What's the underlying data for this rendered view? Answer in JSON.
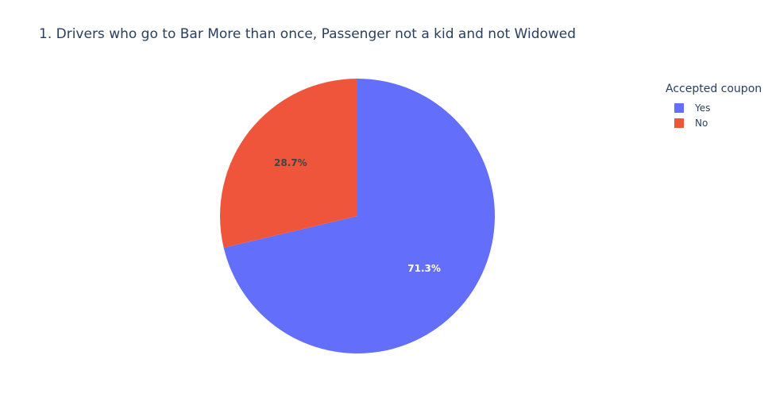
{
  "chart_data": {
    "type": "pie",
    "title": "1. Drivers who go to Bar More than once, Passenger not a kid and not Widowed",
    "legend_title": "Accepted coupon",
    "legend_position": "top-right",
    "slices": [
      {
        "label": "Yes",
        "value": 71.3,
        "text": "71.3%",
        "color": "#636efa",
        "text_color": "#ffffff"
      },
      {
        "label": "No",
        "value": 28.7,
        "text": "28.7%",
        "color": "#ef553b",
        "text_color": "#444444"
      }
    ],
    "direction": "clockwise",
    "start": "12 o'clock"
  }
}
